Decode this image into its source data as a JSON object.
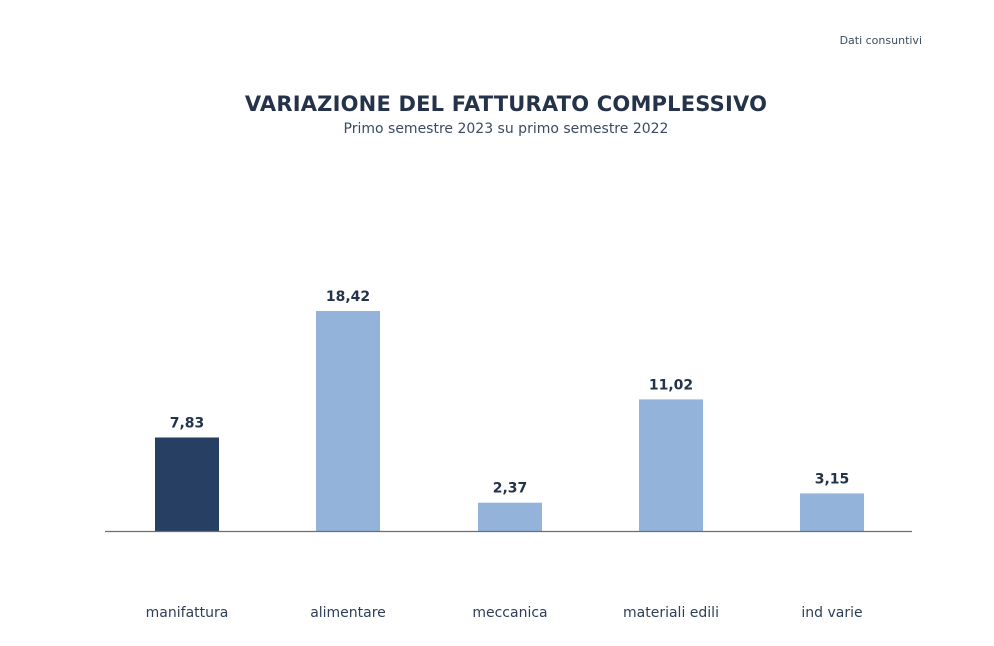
{
  "header": {
    "note": "Dati consuntivi",
    "title": "VARIAZIONE DEL FATTURATO COMPLESSIVO",
    "subtitle": "Primo semestre 2023 su primo semestre 2022"
  },
  "colors": {
    "highlight": "#263f62",
    "bar": "#94b3da",
    "axis": "#6e6e6e"
  },
  "chart_data": {
    "type": "bar",
    "title": "VARIAZIONE DEL FATTURATO COMPLESSIVO",
    "subtitle": "Primo semestre 2023 su primo semestre 2022",
    "categories": [
      "manifattura",
      "alimentare",
      "meccanica",
      "materiali edili",
      "ind varie"
    ],
    "values": [
      7.83,
      18.42,
      2.37,
      11.02,
      3.15
    ],
    "value_labels": [
      "7,83",
      "18,42",
      "2,37",
      "11,02",
      "3,15"
    ],
    "highlighted_index": 0,
    "xlabel": "",
    "ylabel": "",
    "ylim": [
      0,
      18.42
    ],
    "grid": false,
    "legend": "none"
  }
}
